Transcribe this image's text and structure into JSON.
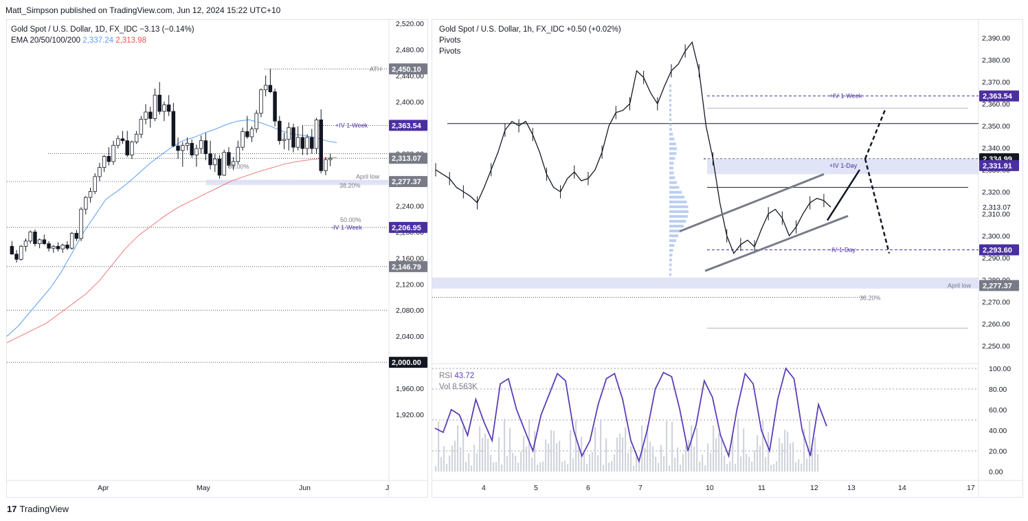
{
  "header": {
    "publisher": "Matt_Simpson published on TradingView.com, Jun 12, 2024 15:22 UTC+10"
  },
  "footer": {
    "brand": "TradingView",
    "logo_text": "17"
  },
  "colors": {
    "ema50": "#5b9cf0",
    "ema200": "#f07878",
    "tag_purple": "#4a2fa0",
    "tag_gray": "#787b86",
    "rsi": "#5b3db8",
    "up": "#ffffff",
    "down": "#131722"
  },
  "left_chart": {
    "title": "Gold Spot / U.S. Dollar, 1D, FX_IDC",
    "change": "−3.13 (−0.14%)",
    "ema_label": "EMA 20/50/100/200",
    "ema_val1": "2,337.24",
    "ema_val2": "2,313.98",
    "price_ticks": [
      "2,520.00",
      "2,480.00",
      "2,440.00",
      "2,400.00",
      "2,360.00",
      "2,320.00",
      "2,280.00",
      "2,240.00",
      "2,200.00",
      "2,160.00",
      "2,120.00",
      "2,080.00",
      "2,040.00",
      "2,000.00",
      "1,960.00",
      "1,920.00"
    ],
    "time_ticks": [
      "Apr",
      "May",
      "Jun",
      "J"
    ],
    "tags": [
      {
        "text": "2,450.10",
        "color": "gray"
      },
      {
        "text": "2,363.54",
        "color": "purple"
      },
      {
        "text": "2,313.07",
        "color": "gray"
      },
      {
        "text": "2,277.37",
        "color": "gray"
      },
      {
        "text": "2,206.95",
        "color": "purple"
      },
      {
        "text": "2,146.79",
        "color": "gray"
      },
      {
        "text": "2,000.00",
        "color": "black"
      }
    ],
    "annotations": [
      "ATH",
      "+IV 1-Week",
      "50.00%",
      "April low",
      "38.20%",
      "50.00%",
      "-IV 1-Week"
    ]
  },
  "right_chart": {
    "title": "Gold Spot / U.S. Dollar, 1h, FX_IDC",
    "change": "+0.50 (+0.02%)",
    "pivots1": "Pivots",
    "pivots2": "Pivots",
    "price_ticks": [
      "2,390.00",
      "2,380.00",
      "2,370.00",
      "2,360.00",
      "2,350.00",
      "2,340.00",
      "2,330.00",
      "2,320.00",
      "2,310.00",
      "2,300.00",
      "2,290.00",
      "2,280.00",
      "2,270.00",
      "2,260.00",
      "2,250.00"
    ],
    "time_ticks": [
      "4",
      "5",
      "6",
      "7",
      "10",
      "11",
      "12",
      "13",
      "14",
      "17"
    ],
    "tags": [
      {
        "text": "2,363.54",
        "color": "purple"
      },
      {
        "text": "2,334.99",
        "color": "black"
      },
      {
        "text": "2,331.91",
        "color": "purple"
      },
      {
        "text": "2,313.07",
        "color": "none"
      },
      {
        "text": "2,293.60",
        "color": "purple"
      },
      {
        "text": "2,277.37",
        "color": "gray"
      }
    ],
    "annotations": [
      "+IV 1-Week",
      "+IV 1-Day",
      "-IV 1-Day",
      "April low",
      "38.20%"
    ],
    "rsi_label": "RSI",
    "rsi_value": "43.72",
    "vol_label": "Vol",
    "vol_value": "8.563K",
    "rsi_ticks": [
      "100.00",
      "80.00",
      "60.00",
      "40.00",
      "20.00",
      "0.00"
    ]
  },
  "chart_data": [
    {
      "type": "candlestick",
      "title": "Gold Spot / U.S. Dollar, 1D, FX_IDC",
      "ylim": [
        1900,
        2525
      ],
      "ohlc": [
        [
          2178,
          2186,
          2165,
          2166
        ],
        [
          2166,
          2172,
          2153,
          2158
        ],
        [
          2158,
          2180,
          2156,
          2178
        ],
        [
          2178,
          2190,
          2170,
          2186
        ],
        [
          2186,
          2202,
          2182,
          2200
        ],
        [
          2200,
          2204,
          2178,
          2182
        ],
        [
          2182,
          2190,
          2175,
          2188
        ],
        [
          2188,
          2196,
          2180,
          2182
        ],
        [
          2182,
          2186,
          2170,
          2175
        ],
        [
          2175,
          2180,
          2168,
          2178
        ],
        [
          2178,
          2184,
          2170,
          2174
        ],
        [
          2174,
          2182,
          2168,
          2180
        ],
        [
          2180,
          2186,
          2172,
          2175
        ],
        [
          2175,
          2200,
          2173,
          2198
        ],
        [
          2198,
          2203,
          2186,
          2190
        ],
        [
          2190,
          2238,
          2186,
          2235
        ],
        [
          2235,
          2255,
          2227,
          2253
        ],
        [
          2253,
          2268,
          2245,
          2262
        ],
        [
          2262,
          2290,
          2258,
          2285
        ],
        [
          2285,
          2306,
          2278,
          2299
        ],
        [
          2299,
          2318,
          2292,
          2316
        ],
        [
          2316,
          2330,
          2302,
          2308
        ],
        [
          2308,
          2340,
          2303,
          2333
        ],
        [
          2333,
          2348,
          2328,
          2343
        ],
        [
          2343,
          2355,
          2335,
          2340
        ],
        [
          2340,
          2355,
          2315,
          2318
        ],
        [
          2318,
          2340,
          2312,
          2338
        ],
        [
          2338,
          2355,
          2335,
          2350
        ],
        [
          2350,
          2378,
          2344,
          2373
        ],
        [
          2373,
          2396,
          2365,
          2384
        ],
        [
          2384,
          2392,
          2360,
          2374
        ],
        [
          2374,
          2420,
          2370,
          2410
        ],
        [
          2410,
          2430,
          2380,
          2385
        ],
        [
          2385,
          2400,
          2370,
          2395
        ],
        [
          2395,
          2410,
          2378,
          2385
        ],
        [
          2385,
          2398,
          2330,
          2332
        ],
        [
          2332,
          2345,
          2312,
          2325
        ],
        [
          2325,
          2338,
          2300,
          2333
        ],
        [
          2333,
          2345,
          2325,
          2336
        ],
        [
          2336,
          2342,
          2314,
          2318
        ],
        [
          2318,
          2334,
          2300,
          2328
        ],
        [
          2328,
          2348,
          2320,
          2340
        ],
        [
          2340,
          2352,
          2310,
          2320
        ],
        [
          2320,
          2340,
          2296,
          2303
        ],
        [
          2303,
          2320,
          2292,
          2312
        ],
        [
          2312,
          2318,
          2282,
          2287
        ],
        [
          2287,
          2326,
          2286,
          2322
        ],
        [
          2322,
          2330,
          2298,
          2302
        ],
        [
          2302,
          2315,
          2295,
          2308
        ],
        [
          2308,
          2340,
          2304,
          2330
        ],
        [
          2330,
          2360,
          2325,
          2354
        ],
        [
          2354,
          2378,
          2343,
          2346
        ],
        [
          2346,
          2362,
          2338,
          2358
        ],
        [
          2358,
          2387,
          2352,
          2382
        ],
        [
          2382,
          2420,
          2376,
          2418
        ],
        [
          2418,
          2440,
          2408,
          2425
        ],
        [
          2425,
          2450,
          2413,
          2415
        ],
        [
          2415,
          2420,
          2362,
          2370
        ],
        [
          2370,
          2378,
          2334,
          2340
        ],
        [
          2340,
          2352,
          2327,
          2342
        ],
        [
          2342,
          2368,
          2325,
          2360
        ],
        [
          2360,
          2366,
          2322,
          2330
        ],
        [
          2330,
          2362,
          2325,
          2345
        ],
        [
          2345,
          2364,
          2318,
          2328
        ],
        [
          2328,
          2350,
          2318,
          2345
        ],
        [
          2345,
          2358,
          2320,
          2328
        ],
        [
          2328,
          2375,
          2320,
          2372
        ],
        [
          2372,
          2388,
          2290,
          2294
        ],
        [
          2294,
          2315,
          2287,
          2311
        ],
        [
          2311,
          2320,
          2301,
          2313
        ]
      ],
      "ema50": [
        2040,
        2055,
        2075,
        2095,
        2115,
        2140,
        2170,
        2200,
        2225,
        2250,
        2262,
        2275,
        2290,
        2305,
        2318,
        2330,
        2340,
        2345,
        2352,
        2358,
        2365,
        2370,
        2372,
        2368,
        2362,
        2355,
        2350,
        2348,
        2345,
        2340,
        2337
      ],
      "ema200": [
        2030,
        2040,
        2050,
        2060,
        2075,
        2090,
        2105,
        2125,
        2150,
        2175,
        2195,
        2210,
        2225,
        2238,
        2248,
        2258,
        2268,
        2278,
        2285,
        2292,
        2298,
        2304,
        2308,
        2311,
        2313,
        2314
      ]
    },
    {
      "type": "candlestick",
      "title": "Gold Spot / U.S. Dollar, 1h, FX_IDC",
      "ylim": [
        2245,
        2395
      ],
      "x_labels": [
        "4",
        "5",
        "6",
        "7",
        "10",
        "11",
        "12",
        "13",
        "14",
        "17"
      ],
      "close_path": [
        2330,
        2328,
        2326,
        2322,
        2320,
        2318,
        2315,
        2322,
        2330,
        2338,
        2348,
        2352,
        2350,
        2352,
        2346,
        2338,
        2328,
        2322,
        2320,
        2326,
        2329,
        2325,
        2326,
        2330,
        2338,
        2350,
        2356,
        2357,
        2360,
        2375,
        2372,
        2365,
        2360,
        2368,
        2375,
        2378,
        2384,
        2388,
        2375,
        2350,
        2335,
        2315,
        2300,
        2292,
        2296,
        2298,
        2295,
        2303,
        2310,
        2312,
        2308,
        2300,
        2304,
        2310,
        2315,
        2317,
        2316,
        2313
      ],
      "rsi": [
        42,
        38,
        60,
        55,
        35,
        70,
        48,
        30,
        85,
        90,
        60,
        40,
        20,
        55,
        75,
        95,
        88,
        40,
        15,
        30,
        65,
        90,
        95,
        70,
        30,
        10,
        40,
        80,
        96,
        92,
        60,
        20,
        45,
        88,
        72,
        35,
        15,
        60,
        95,
        85,
        40,
        20,
        70,
        100,
        90,
        40,
        15,
        65,
        44
      ],
      "rsi_ylim": [
        0,
        100
      ]
    }
  ]
}
